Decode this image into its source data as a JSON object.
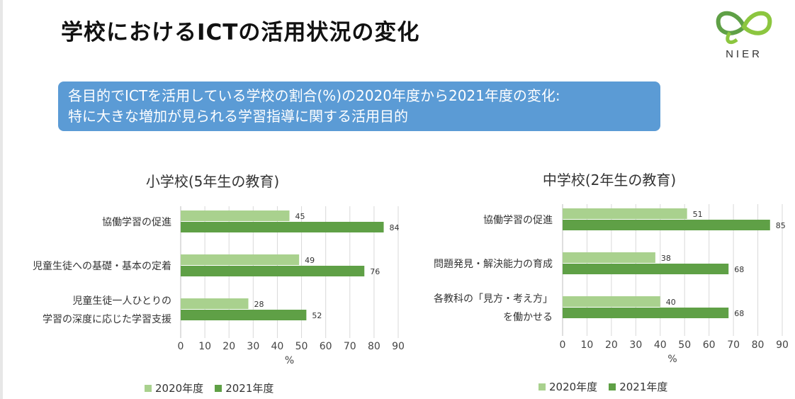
{
  "title": "学校におけるICTの活用状況の変化",
  "logo": {
    "text": "NIER"
  },
  "banner": {
    "line1": "各目的でICTを活用している学校の割合(%)の2020年度から2021年度の変化:",
    "line2": "特に大きな増加が見られる学習指導に関する活用目的"
  },
  "colors": {
    "y2020": "#a9d18e",
    "y2021": "#5fa046",
    "banner": "#5b9bd5"
  },
  "chart_data": [
    {
      "type": "bar",
      "orientation": "horizontal",
      "title": "小学校(5年生の教育)",
      "xlabel": "%",
      "xlim": [
        0,
        90
      ],
      "ticks": [
        "0",
        "10",
        "20",
        "30",
        "40",
        "50",
        "60",
        "70",
        "80",
        "90"
      ],
      "grid": true,
      "legend_position": "bottom",
      "categories": [
        [
          "協働学習の促進"
        ],
        [
          "児童生徒への基礎・基本の定着"
        ],
        [
          "児童生徒一人ひとりの",
          "学習の深度に応じた学習支援"
        ]
      ],
      "series": [
        {
          "name": "2020年度",
          "values": [
            45,
            49,
            28
          ]
        },
        {
          "name": "2021年度",
          "values": [
            84,
            76,
            52
          ]
        }
      ]
    },
    {
      "type": "bar",
      "orientation": "horizontal",
      "title": "中学校(2年生の教育)",
      "xlabel": "%",
      "xlim": [
        0,
        90
      ],
      "ticks": [
        "0",
        "10",
        "20",
        "30",
        "40",
        "50",
        "60",
        "70",
        "80",
        "90"
      ],
      "grid": true,
      "legend_position": "bottom",
      "categories": [
        [
          "協働学習の促進"
        ],
        [
          "問題発見・解決能力の育成"
        ],
        [
          "各教科の「見方・考え方」",
          "を働かせる"
        ]
      ],
      "series": [
        {
          "name": "2020年度",
          "values": [
            51,
            38,
            40
          ]
        },
        {
          "name": "2021年度",
          "values": [
            85,
            68,
            68
          ]
        }
      ]
    }
  ]
}
